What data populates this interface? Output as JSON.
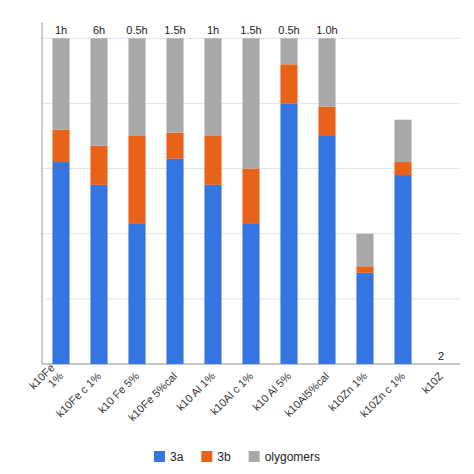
{
  "chart_data": {
    "type": "bar",
    "stacked": true,
    "categories": [
      "k10Fe\n1%",
      "k10Fe c 1%",
      "k10 Fe 5%",
      "k10Fe 5%cal",
      "k10 Al 1%",
      "k10Al c 1%",
      "k10 Al 5%",
      "k10Al5%cal",
      "k10Zn 1%",
      "k10Zn c 1%",
      "k10Z"
    ],
    "series": [
      {
        "name": "3a",
        "color": "#3575e2",
        "values": [
          62,
          55,
          43,
          63,
          55,
          43,
          80,
          70,
          28,
          58,
          0
        ]
      },
      {
        "name": "3b",
        "color": "#e8621a",
        "values": [
          10,
          12,
          27,
          8,
          15,
          17,
          12,
          9,
          2,
          4,
          0
        ]
      },
      {
        "name": "olygomers",
        "color": "#a8a8a8",
        "values": [
          28,
          33,
          30,
          29,
          30,
          40,
          8,
          21,
          10,
          13,
          0
        ]
      }
    ],
    "annotations": [
      "1h",
      "6h",
      "0.5h",
      "1.5h",
      "1h",
      "1.5h",
      "0.5h",
      "1.0h",
      null,
      null,
      "2"
    ],
    "ylim": [
      0,
      105
    ],
    "yticks": [
      0,
      20,
      40,
      60,
      80,
      100
    ],
    "grid": true,
    "tick_labels": "x",
    "legend": "bottom"
  }
}
